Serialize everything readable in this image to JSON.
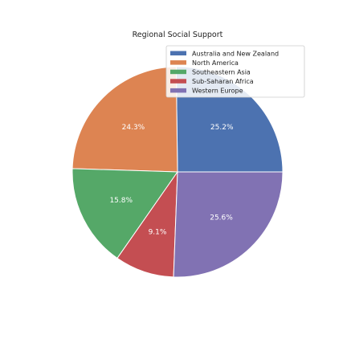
{
  "chart_data": {
    "type": "pie",
    "title": "Regional Social Support",
    "categories": [
      "Australia and New Zealand",
      "North America",
      "Southeastern Asia",
      "Sub-Saharan Africa",
      "Western Europe"
    ],
    "values": [
      25.2,
      24.3,
      15.8,
      9.1,
      25.6
    ],
    "labels": [
      "25.2%",
      "24.3%",
      "15.8%",
      "9.1%",
      "25.6%"
    ],
    "colors": [
      "#4c72b0",
      "#dd8452",
      "#55a868",
      "#c44e52",
      "#8172b3"
    ],
    "legend_position": "top-right",
    "start_direction": "east",
    "direction": "counterclockwise"
  }
}
